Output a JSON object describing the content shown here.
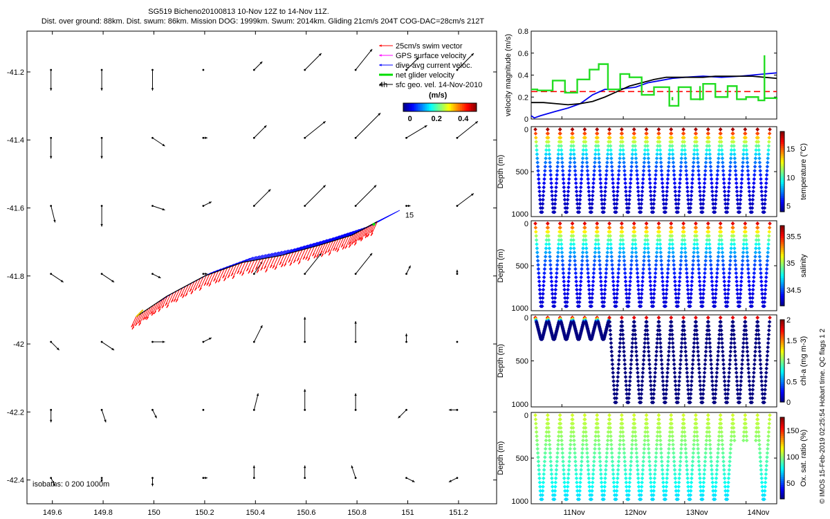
{
  "header": {
    "line1": "SG519 Bicheno20100813 10-Nov 12Z to 14-Nov 11Z.",
    "line2": "Dist. over ground: 88km. Dist. swum: 86km. Mission DOG: 1999km. Swum: 2014km. Gliding 21cm/s 204T COG-DAC=28cm/s 212T"
  },
  "watermark": "© IMOS 15-Feb-2019 02:25:54 Hobart time. QC flags 1  2",
  "colors": {
    "swim": "#ff0000",
    "gps": "#ff00ff",
    "dac": "#0000ff",
    "net": "#00dd00",
    "sfc": "#000000",
    "ref_line": "#ff0000",
    "vel_blue": "#0000ee",
    "vel_black": "#000000",
    "vel_green": "#22dd22"
  },
  "chart_data": [
    {
      "id": "map",
      "type": "scatter",
      "xlim": [
        149.5,
        151.35
      ],
      "ylim": [
        -42.47,
        -41.08
      ],
      "xticks": [
        149.6,
        149.8,
        150,
        150.2,
        150.4,
        150.6,
        150.8,
        151,
        151.2
      ],
      "xtick_labels": [
        "149.6",
        "149.8",
        "150",
        "150.2",
        "150.4",
        "150.6",
        "150.8",
        "151",
        "151.2"
      ],
      "yticks": [
        -41.2,
        -41.4,
        -41.6,
        -41.8,
        -42,
        -42.2,
        -42.4
      ],
      "ytick_labels": [
        "-41.2",
        "-41.4",
        "-41.6",
        "-41.8",
        "-42",
        "-42.2",
        "-42.4"
      ],
      "legend": [
        {
          "label": "25cm/s swim vector",
          "color": "#ff0000"
        },
        {
          "label": "GPS surface velocity",
          "color": "#ff00ff"
        },
        {
          "label": "dive-avg current veloc.",
          "color": "#0000ff"
        },
        {
          "label": "net glider velocity",
          "color": "#00dd00"
        },
        {
          "label": "sfc geo. vel. 14-Nov-2010",
          "color": "#000000"
        }
      ],
      "legend_4h": "4h",
      "colorbar": {
        "title": "(m/s)",
        "ticks": [
          "0",
          "0.2",
          "0.4"
        ],
        "range": [
          -0.05,
          0.5
        ]
      },
      "isobaths_text": "isobaths: 0   200  1000m",
      "track_label": "15",
      "track": [
        [
          149.93,
          -41.92
        ],
        [
          150.05,
          -41.86
        ],
        [
          150.2,
          -41.8
        ],
        [
          150.35,
          -41.76
        ],
        [
          150.5,
          -41.74
        ],
        [
          150.65,
          -41.71
        ],
        [
          150.78,
          -41.68
        ],
        [
          150.88,
          -41.64
        ]
      ],
      "field_lon": [
        149.6,
        149.8,
        150.0,
        150.2,
        150.4,
        150.6,
        150.8,
        151.0,
        151.2
      ],
      "field_lat": [
        -41.2,
        -41.4,
        -41.6,
        -41.8,
        -42.0,
        -42.2,
        -42.4
      ],
      "field_uv": [
        [
          [
            0.0,
            -0.05
          ],
          [
            0.0,
            -0.05
          ],
          [
            0.0,
            -0.05
          ],
          [
            0.0,
            0.0
          ],
          [
            0.02,
            0.02
          ],
          [
            0.04,
            0.04
          ],
          [
            0.04,
            0.05
          ],
          [
            0.03,
            0.03
          ],
          [
            0.04,
            0.04
          ]
        ],
        [
          [
            0.0,
            -0.05
          ],
          [
            0.0,
            -0.05
          ],
          [
            0.03,
            -0.02
          ],
          [
            0.01,
            0.0
          ],
          [
            0.03,
            0.03
          ],
          [
            0.05,
            0.04
          ],
          [
            0.06,
            0.06
          ],
          [
            0.05,
            0.03
          ],
          [
            0.05,
            0.04
          ]
        ],
        [
          [
            0.01,
            -0.04
          ],
          [
            0.0,
            -0.05
          ],
          [
            0.03,
            -0.01
          ],
          [
            0.02,
            0.01
          ],
          [
            0.04,
            0.04
          ],
          [
            0.05,
            0.05
          ],
          [
            0.05,
            0.05
          ],
          [
            0.01,
            0.0
          ],
          [
            0.04,
            0.03
          ]
        ],
        [
          [
            0.03,
            -0.02
          ],
          [
            0.03,
            -0.02
          ],
          [
            0.02,
            -0.01
          ],
          [
            0.01,
            0.0
          ],
          [
            0.02,
            0.03
          ],
          [
            0.04,
            0.05
          ],
          [
            0.04,
            0.05
          ],
          [
            0.01,
            0.02
          ],
          [
            0.0,
            0.01
          ]
        ],
        [
          [
            0.02,
            -0.02
          ],
          [
            0.03,
            -0.02
          ],
          [
            0.03,
            0.0
          ],
          [
            0.02,
            0.01
          ],
          [
            0.02,
            0.04
          ],
          [
            0.0,
            0.06
          ],
          [
            0.0,
            0.05
          ],
          [
            0.0,
            0.02
          ],
          [
            0.0,
            0.0
          ]
        ],
        [
          [
            0.0,
            -0.03
          ],
          [
            0.01,
            -0.03
          ],
          [
            0.01,
            -0.02
          ],
          [
            0.0,
            0.0
          ],
          [
            0.01,
            0.04
          ],
          [
            0.0,
            0.05
          ],
          [
            0.0,
            0.04
          ],
          [
            -0.02,
            -0.02
          ],
          [
            -0.02,
            0.0
          ]
        ],
        [
          [
            0.01,
            -0.02
          ],
          [
            0.0,
            -0.01
          ],
          [
            0.0,
            -0.02
          ],
          [
            0.01,
            0.0
          ],
          [
            0.0,
            0.03
          ],
          [
            0.0,
            0.03
          ],
          [
            -0.01,
            0.03
          ],
          [
            0.02,
            -0.01
          ],
          [
            -0.02,
            -0.01
          ]
        ]
      ]
    },
    {
      "id": "velocity",
      "type": "line",
      "xlim": [
        10.5,
        14.5
      ],
      "ylim": [
        0,
        0.8
      ],
      "yticks": [
        0,
        0.2,
        0.4,
        0.6,
        0.8
      ],
      "ytick_labels": [
        "0",
        "0.2",
        "0.4",
        "0.6",
        "0.8"
      ],
      "ylabel": "velocity magnitude (m/s)",
      "ref_value": 0.25,
      "series": [
        {
          "color": "#0000ee",
          "x": [
            10.5,
            10.55,
            10.65,
            10.9,
            11.1,
            11.3,
            11.5,
            11.7,
            11.9,
            12.2,
            12.4,
            12.6,
            12.8,
            13.0,
            13.3,
            13.6,
            13.9,
            14.1,
            14.3,
            14.5
          ],
          "y": [
            0.03,
            0.01,
            0.03,
            0.07,
            0.1,
            0.14,
            0.22,
            0.27,
            0.27,
            0.29,
            0.33,
            0.35,
            0.37,
            0.38,
            0.39,
            0.38,
            0.39,
            0.4,
            0.41,
            0.42
          ]
        },
        {
          "color": "#000000",
          "x": [
            10.5,
            10.7,
            10.9,
            11.1,
            11.3,
            11.5,
            11.7,
            11.9,
            12.1,
            12.3,
            12.5,
            12.7,
            12.9,
            13.1,
            13.3,
            13.5,
            13.7,
            13.9,
            14.1,
            14.3,
            14.5
          ],
          "y": [
            0.15,
            0.15,
            0.14,
            0.13,
            0.14,
            0.16,
            0.2,
            0.25,
            0.3,
            0.33,
            0.36,
            0.38,
            0.38,
            0.38,
            0.38,
            0.39,
            0.39,
            0.39,
            0.39,
            0.38,
            0.37
          ]
        },
        {
          "color": "#22dd22",
          "step": true,
          "x": [
            10.5,
            10.6,
            10.85,
            11.05,
            11.25,
            11.45,
            11.6,
            11.75,
            11.95,
            12.1,
            12.3,
            12.5,
            12.75,
            12.9,
            13.1,
            13.3,
            13.5,
            13.7,
            13.85,
            14.0,
            14.2,
            14.3,
            14.5
          ],
          "y": [
            0.27,
            0.26,
            0.35,
            0.24,
            0.36,
            0.45,
            0.5,
            0.27,
            0.41,
            0.38,
            0.22,
            0.29,
            0.12,
            0.29,
            0.18,
            0.32,
            0.2,
            0.3,
            0.18,
            0.2,
            0.17,
            0.19,
            0.18
          ],
          "spikes": [
            [
              12.8,
              0.2
            ],
            [
              13.25,
              0.3
            ],
            [
              14.3,
              0.58
            ]
          ]
        }
      ]
    },
    {
      "id": "temperature",
      "type": "scatter",
      "ylim": [
        1000,
        0
      ],
      "yticks": [
        0,
        500,
        1000
      ],
      "ytick_labels": [
        "0",
        "500",
        "1000"
      ],
      "ylabel": "Depth (m)",
      "colorbar": {
        "label": "temperature (°C)",
        "ticks": [
          5,
          10,
          15
        ],
        "tick_labels": [
          "5",
          "10",
          "15"
        ],
        "range": [
          4,
          18
        ]
      },
      "dives": 19,
      "max_depth": 980,
      "top_value": 17.5,
      "bottom_value": 4.5,
      "gradient": "exp"
    },
    {
      "id": "salinity",
      "type": "scatter",
      "ylim": [
        1000,
        0
      ],
      "yticks": [
        0,
        500,
        1000
      ],
      "ytick_labels": [
        "0",
        "500",
        "1000"
      ],
      "ylabel": "Depth (m)",
      "colorbar": {
        "label": "salinity",
        "ticks": [
          34.5,
          35,
          35.5
        ],
        "tick_labels": [
          "34.5",
          "35",
          "35.5"
        ],
        "range": [
          34.2,
          35.7
        ]
      },
      "dives": 19,
      "max_depth": 980,
      "top_value": 35.55,
      "bottom_value": 34.3,
      "gradient": "exp"
    },
    {
      "id": "chla",
      "type": "scatter",
      "ylim": [
        1000,
        0
      ],
      "yticks": [
        0,
        500,
        1000
      ],
      "ytick_labels": [
        "0",
        "500",
        "1000"
      ],
      "ylabel": "Depth (m)",
      "colorbar": {
        "label": "chl-a (mg m-3)",
        "ticks": [
          0,
          0.5,
          1,
          1.5,
          2
        ],
        "tick_labels": [
          "0",
          "0.5",
          "1",
          "1.5",
          "2"
        ],
        "range": [
          0,
          2
        ]
      },
      "dives": 19,
      "max_depth": 980,
      "top_value": 1.8,
      "bottom_value": 0.0,
      "gradient": "sharp",
      "shallow_dives": 6,
      "shallow_depth": 250
    },
    {
      "id": "oxygen",
      "type": "scatter",
      "ylim": [
        1000,
        0
      ],
      "yticks": [
        0,
        500,
        1000
      ],
      "ytick_labels": [
        "0",
        "500",
        "1000"
      ],
      "ylabel": "Depth (m)",
      "colorbar": {
        "label": "Ox. sat. ratio (%)",
        "ticks": [
          50,
          100,
          150
        ],
        "tick_labels": [
          "50",
          "100",
          "150"
        ],
        "range": [
          20,
          175
        ]
      },
      "dives": 19,
      "max_depth": 980,
      "top_value": 110,
      "bottom_value": 72,
      "gradient": "linear",
      "x": [
        10.5,
        14.5
      ],
      "xticks": [
        11,
        12,
        13,
        14
      ],
      "xtick_labels": [
        "11Nov",
        "12Nov",
        "13Nov",
        "14Nov"
      ]
    }
  ]
}
